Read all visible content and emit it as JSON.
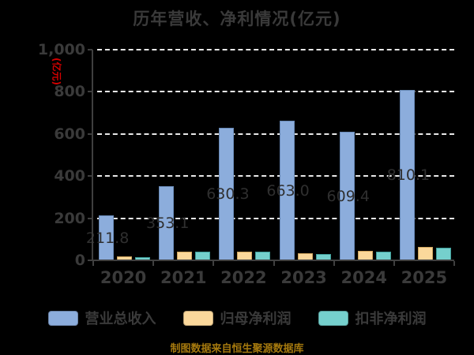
{
  "title": "历年营收、净利情况(亿元)",
  "y_axis": {
    "unit_label": "(亿元)",
    "unit_color": "#d40000",
    "max": 1000,
    "ticks": [
      {
        "label": "1,000",
        "value": 1000
      },
      {
        "label": "800",
        "value": 800
      },
      {
        "label": "600",
        "value": 600
      },
      {
        "label": "400",
        "value": 400
      },
      {
        "label": "200",
        "value": 200
      },
      {
        "label": "0",
        "value": 0
      }
    ]
  },
  "x_axis": {
    "categories": [
      "2020",
      "2021",
      "2022",
      "2023",
      "2024",
      "2025"
    ]
  },
  "series": [
    {
      "name": "营业总收入",
      "color": "#8caddc",
      "border_color": "#6889b6",
      "values": [
        211.8,
        353.1,
        630.3,
        663.0,
        609.4,
        810.1
      ],
      "labels": [
        "211.8",
        "353.1",
        "630.3",
        "663.0",
        "609.4",
        "810.1"
      ]
    },
    {
      "name": "归母净利润",
      "color": "#fbd89b",
      "border_color": "#cfa55e",
      "values": [
        19,
        41,
        41,
        34,
        45,
        62
      ]
    },
    {
      "name": "扣非净利润",
      "color": "#75d0cd",
      "border_color": "#3f9e9a",
      "values": [
        15,
        41,
        41,
        30,
        40,
        59
      ]
    }
  ],
  "footer": {
    "text": "制图数据来自恒生聚源数据库",
    "color": "#a5790e"
  },
  "chart_data": {
    "type": "bar",
    "title": "历年营收、净利情况(亿元)",
    "categories": [
      "2020",
      "2021",
      "2022",
      "2023",
      "2024",
      "2025"
    ],
    "series": [
      {
        "name": "营业总收入",
        "values": [
          211.8,
          353.1,
          630.3,
          663.0,
          609.4,
          810.1
        ]
      },
      {
        "name": "归母净利润",
        "values": [
          19,
          41,
          41,
          34,
          45,
          62
        ]
      },
      {
        "name": "扣非净利润",
        "values": [
          15,
          41,
          41,
          30,
          40,
          59
        ]
      }
    ],
    "xlabel": "",
    "ylabel": "(亿元)",
    "ylim": [
      0,
      1000
    ],
    "grid": "horizontal-dashed-white",
    "legend_position": "bottom",
    "background": "#000000"
  }
}
